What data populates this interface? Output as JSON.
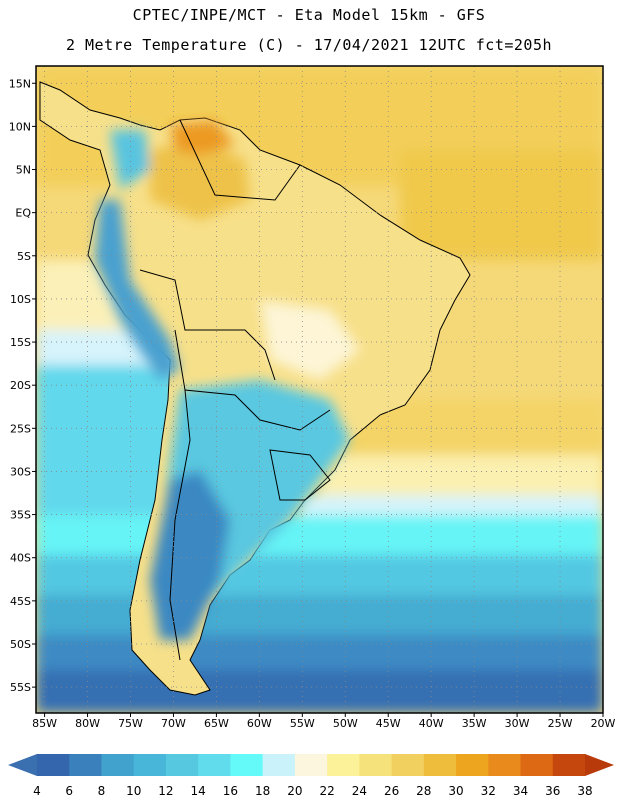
{
  "title": {
    "line1": "CPTEC/INPE/MCT -  Eta Model 15km - GFS",
    "line2": "2 Metre Temperature (C) - 17/04/2021 12UTC fct=205h"
  },
  "map": {
    "lon_range": [
      -86,
      -20
    ],
    "lat_range": [
      -58,
      17
    ],
    "lat_ticks": [
      {
        "value": 15,
        "label": "15N"
      },
      {
        "value": 10,
        "label": "10N"
      },
      {
        "value": 5,
        "label": "5N"
      },
      {
        "value": 0,
        "label": "EQ"
      },
      {
        "value": -5,
        "label": "5S"
      },
      {
        "value": -10,
        "label": "10S"
      },
      {
        "value": -15,
        "label": "15S"
      },
      {
        "value": -20,
        "label": "20S"
      },
      {
        "value": -25,
        "label": "25S"
      },
      {
        "value": -30,
        "label": "30S"
      },
      {
        "value": -35,
        "label": "35S"
      },
      {
        "value": -40,
        "label": "40S"
      },
      {
        "value": -45,
        "label": "45S"
      },
      {
        "value": -50,
        "label": "50S"
      },
      {
        "value": -55,
        "label": "55S"
      }
    ],
    "lon_ticks": [
      {
        "value": -85,
        "label": "85W"
      },
      {
        "value": -80,
        "label": "80W"
      },
      {
        "value": -75,
        "label": "75W"
      },
      {
        "value": -70,
        "label": "70W"
      },
      {
        "value": -65,
        "label": "65W"
      },
      {
        "value": -60,
        "label": "60W"
      },
      {
        "value": -55,
        "label": "55W"
      },
      {
        "value": -50,
        "label": "50W"
      },
      {
        "value": -45,
        "label": "45W"
      },
      {
        "value": -40,
        "label": "40W"
      },
      {
        "value": -35,
        "label": "35W"
      },
      {
        "value": -30,
        "label": "30W"
      },
      {
        "value": -25,
        "label": "25W"
      },
      {
        "value": -20,
        "label": "20W"
      }
    ]
  },
  "colorbar": {
    "values": [
      "4",
      "6",
      "8",
      "10",
      "12",
      "14",
      "16",
      "18",
      "20",
      "22",
      "24",
      "26",
      "28",
      "30",
      "32",
      "34",
      "36",
      "38"
    ],
    "low_color": "#3a6fb0",
    "high_color": "#b83a0a",
    "colors": [
      "#3466ae",
      "#3a80bc",
      "#40a2cd",
      "#48b6d8",
      "#56c8e0",
      "#60dcec",
      "#64fafa",
      "#c9f2fa",
      "#fdf6df",
      "#fbf29a",
      "#f5e27a",
      "#f2d060",
      "#eebd3c",
      "#eda41e",
      "#e98a1d",
      "#dd6914",
      "#c6470d"
    ]
  }
}
